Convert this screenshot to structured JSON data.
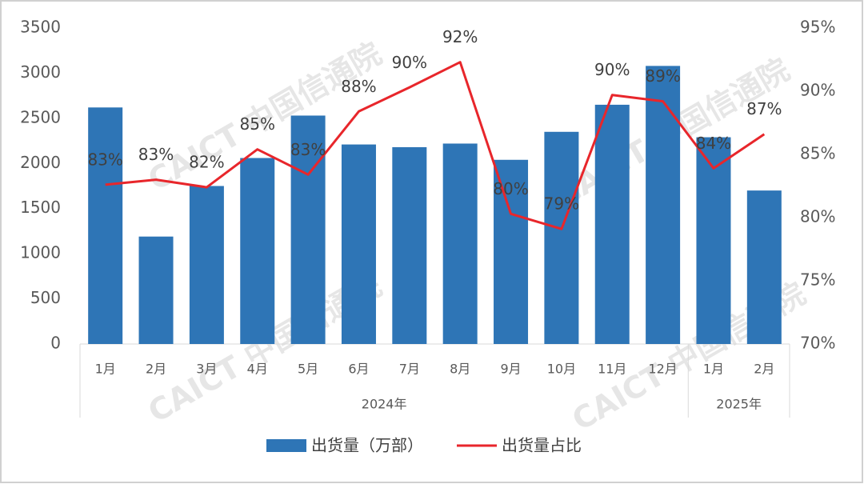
{
  "chart_data": {
    "type": "bar-line",
    "categories": [
      "1月",
      "2月",
      "3月",
      "4月",
      "5月",
      "6月",
      "7月",
      "8月",
      "9月",
      "10月",
      "11月",
      "12月",
      "1月",
      "2月"
    ],
    "groups": [
      {
        "label": "2024年",
        "size": 12
      },
      {
        "label": "2025年",
        "size": 2
      }
    ],
    "series": [
      {
        "name": "出货量（万部）",
        "color": "#2e75b6",
        "kind": "bar",
        "values": [
          2620,
          1190,
          1750,
          2060,
          2530,
          2210,
          2180,
          2220,
          2040,
          2350,
          2650,
          3080,
          2290,
          1700
        ]
      },
      {
        "name": "出货量占比",
        "color": "#e8262b",
        "kind": "line",
        "axis": "y2",
        "values": [
          82.6,
          83.0,
          82.4,
          85.4,
          83.4,
          88.4,
          90.3,
          92.3,
          80.3,
          79.1,
          89.7,
          89.2,
          83.9,
          86.6
        ],
        "value_labels": [
          "83%",
          "83%",
          "82%",
          "85%",
          "83%",
          "88%",
          "90%",
          "92%",
          "80%",
          "79%",
          "90%",
          "89%",
          "84%",
          "87%"
        ]
      }
    ],
    "ylim": [
      0,
      3500
    ],
    "yticks": [
      0,
      500,
      1000,
      1500,
      2000,
      2500,
      3000,
      3500
    ],
    "y2lim": [
      70,
      95
    ],
    "y2ticks": [
      {
        "value": 70,
        "label": "70%"
      },
      {
        "value": 75,
        "label": "75%"
      },
      {
        "value": 80,
        "label": "80%"
      },
      {
        "value": 85,
        "label": "85%"
      },
      {
        "value": 90,
        "label": "90%"
      },
      {
        "value": 95,
        "label": "95%"
      }
    ],
    "grid": false,
    "legend": "bottom",
    "watermark": "CAICT 中国信通院"
  }
}
